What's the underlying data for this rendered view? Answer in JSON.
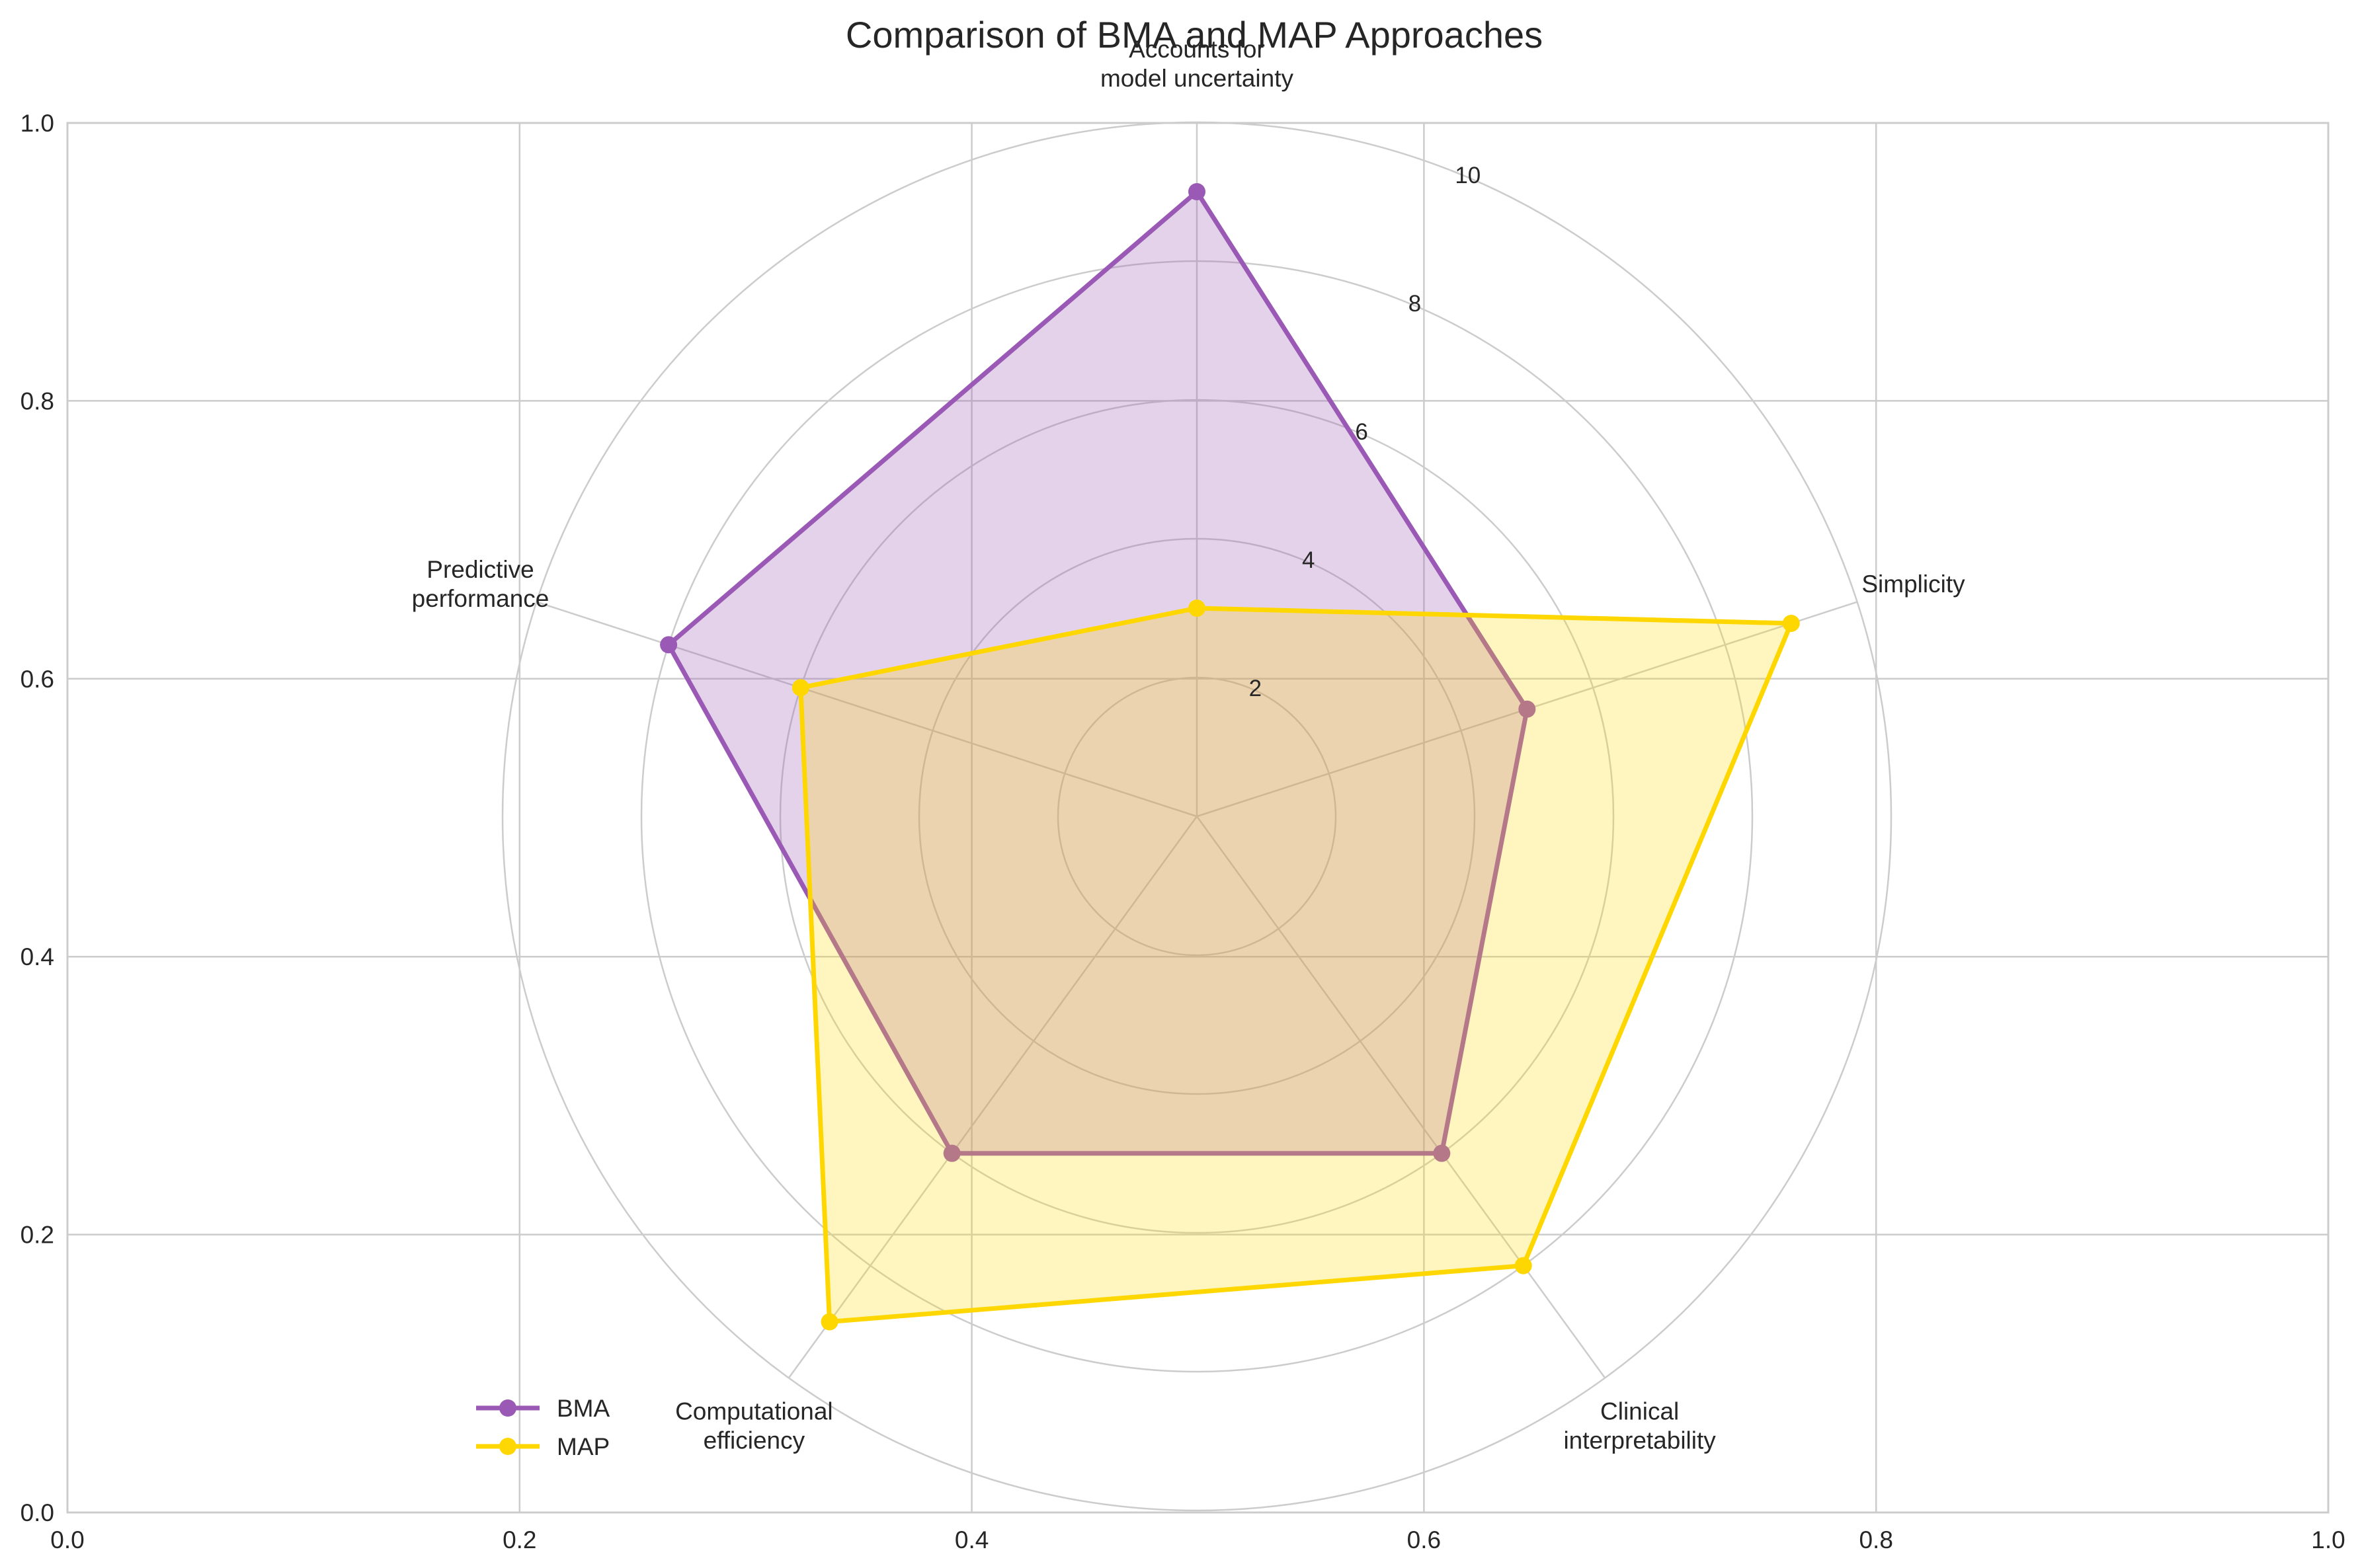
{
  "title": "Comparison of BMA and MAP Approaches",
  "chart_data": {
    "type": "radar",
    "title": "Comparison of BMA and MAP Approaches",
    "categories": [
      [
        "Accounts for",
        "model uncertainty"
      ],
      [
        "Simplicity"
      ],
      [
        "Clinical",
        "interpretability"
      ],
      [
        "Computational",
        "efficiency"
      ],
      [
        "Predictive",
        "performance"
      ]
    ],
    "radial_ticks": [
      2,
      4,
      6,
      8,
      10
    ],
    "rlim": [
      0,
      10
    ],
    "series": [
      {
        "name": "BMA",
        "values": [
          9,
          5,
          6,
          6,
          8
        ],
        "color": "#9b59b6",
        "fill_opacity": 0.27
      },
      {
        "name": "MAP",
        "values": [
          3,
          9,
          8,
          9,
          6
        ],
        "color": "#ffd700",
        "fill_opacity": 0.25
      }
    ],
    "background_axes": {
      "xticks": [
        "0.0",
        "0.2",
        "0.4",
        "0.6",
        "0.8",
        "1.0"
      ],
      "yticks": [
        "0.0",
        "0.2",
        "0.4",
        "0.6",
        "0.8",
        "1.0"
      ],
      "xlim": [
        0,
        1
      ],
      "ylim": [
        0,
        1
      ],
      "grid": true
    },
    "legend_placement": "lower-left",
    "colors": {
      "grid": "#cccccc",
      "spine": "#cccccc",
      "text": "#262626"
    }
  }
}
